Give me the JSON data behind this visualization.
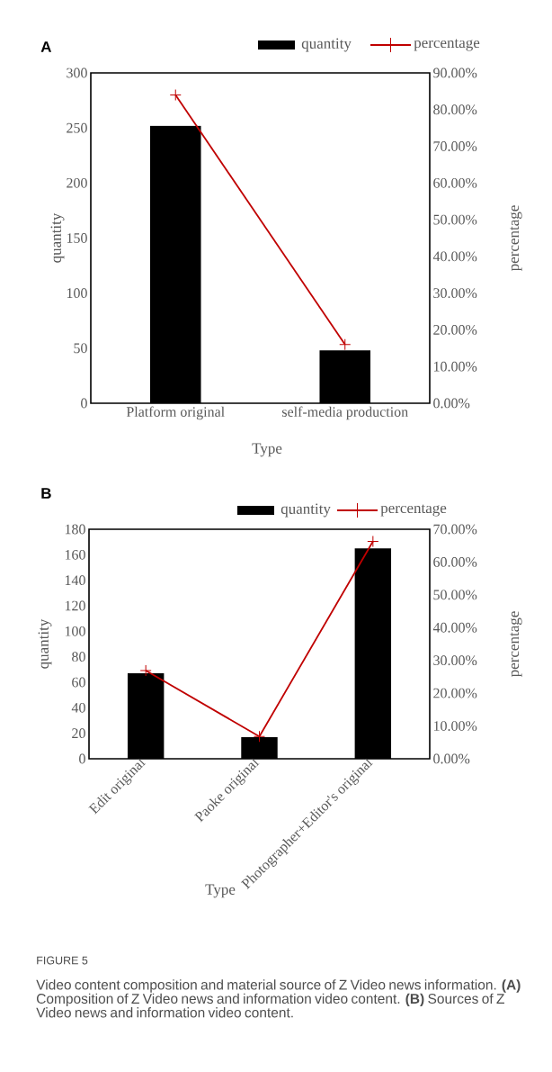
{
  "chart_data": [
    {
      "type": "bar",
      "title": "A",
      "xlabel": "Type",
      "ylabel": "quantity",
      "y2label": "percentage",
      "categories": [
        "Platform original",
        "self-media production"
      ],
      "series": [
        {
          "name": "quantity",
          "color": "#000000",
          "values": [
            252,
            48
          ]
        },
        {
          "name": "percentage",
          "type": "line",
          "axis": "y2",
          "marker": "cross",
          "color": "#c00000",
          "values": [
            84,
            16
          ]
        }
      ],
      "ylim": [
        0,
        300
      ],
      "yticks": [
        0,
        50,
        100,
        150,
        200,
        250,
        300
      ],
      "y2lim": [
        0,
        90
      ],
      "y2ticks": [
        {
          "value": 0,
          "label": "0.00%"
        },
        {
          "value": 10,
          "label": "10.00%"
        },
        {
          "value": 20,
          "label": "20.00%"
        },
        {
          "value": 30,
          "label": "30.00%"
        },
        {
          "value": 40,
          "label": "40.00%"
        },
        {
          "value": 50,
          "label": "50.00%"
        },
        {
          "value": 60,
          "label": "60.00%"
        },
        {
          "value": 70,
          "label": "70.00%"
        },
        {
          "value": 80,
          "label": "80.00%"
        },
        {
          "value": 90,
          "label": "90.00%"
        }
      ],
      "legend": "top",
      "grid": false
    },
    {
      "type": "bar",
      "title": "B",
      "xlabel": "Type",
      "ylabel": "quantity",
      "y2label": "percentage",
      "categories": [
        "Edit original",
        "Paoke original",
        "Photographer+Editor's original"
      ],
      "series": [
        {
          "name": "quantity",
          "color": "#000000",
          "values": [
            67,
            17,
            165
          ]
        },
        {
          "name": "percentage",
          "type": "line",
          "axis": "y2",
          "marker": "cross",
          "color": "#c00000",
          "values": [
            26.9,
            6.8,
            66.3
          ]
        }
      ],
      "ylim": [
        0,
        180
      ],
      "yticks": [
        0,
        20,
        40,
        60,
        80,
        100,
        120,
        140,
        160,
        180
      ],
      "y2lim": [
        0,
        70
      ],
      "y2ticks": [
        {
          "value": 0,
          "label": "0.00%"
        },
        {
          "value": 10,
          "label": "10.00%"
        },
        {
          "value": 20,
          "label": "20.00%"
        },
        {
          "value": 30,
          "label": "30.00%"
        },
        {
          "value": 40,
          "label": "40.00%"
        },
        {
          "value": 50,
          "label": "50.00%"
        },
        {
          "value": 60,
          "label": "60.00%"
        },
        {
          "value": 70,
          "label": "70.00%"
        }
      ],
      "legend": "top",
      "grid": false,
      "annotations": [
        "FIGURE 5",
        "Video content composition and material source of Z Video news information. **(A)** Composition of Z Video news and information video content. **(B)** Sources of Z Video news and information video content."
      ]
    }
  ]
}
